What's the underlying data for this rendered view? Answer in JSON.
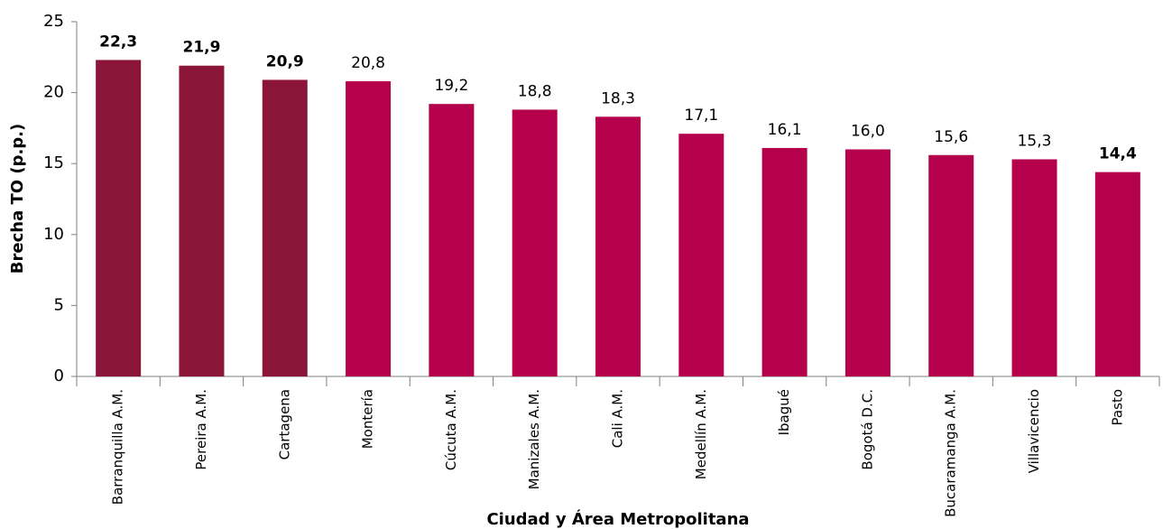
{
  "chart_data": {
    "type": "bar",
    "x_label": "Ciudad y Área Metropolitana",
    "y_label": "Brecha TO (p.p.)",
    "categories": [
      "Barranquilla A.M.",
      "Pereira A.M.",
      "Cartagena",
      "Montería",
      "Cúcuta A.M.",
      "Manizales A.M.",
      "Cali A.M.",
      "Medellín A.M.",
      "Ibagué",
      "Bogotá D.C.",
      "Bucaramanga A.M.",
      "Villavicencio",
      "Pasto"
    ],
    "values": [
      22.3,
      21.9,
      20.9,
      20.8,
      19.2,
      18.8,
      18.3,
      17.1,
      16.1,
      16.0,
      15.6,
      15.3,
      14.4
    ],
    "value_labels": [
      "22,3",
      "21,9",
      "20,9",
      "20,8",
      "19,2",
      "18,8",
      "18,3",
      "17,1",
      "16,1",
      "16,0",
      "15,6",
      "15,3",
      "14,4"
    ],
    "value_label_bold": [
      true,
      true,
      true,
      false,
      false,
      false,
      false,
      false,
      false,
      false,
      false,
      false,
      true
    ],
    "colors": [
      "#8b1538",
      "#8b1538",
      "#8b1538",
      "#b5004b",
      "#b5004b",
      "#b5004b",
      "#b5004b",
      "#b5004b",
      "#b5004b",
      "#b5004b",
      "#b5004b",
      "#b5004b",
      "#b5004b"
    ],
    "ylim": [
      0,
      25
    ],
    "yticks": [
      0,
      5,
      10,
      15,
      20,
      25
    ],
    "grid": false
  }
}
